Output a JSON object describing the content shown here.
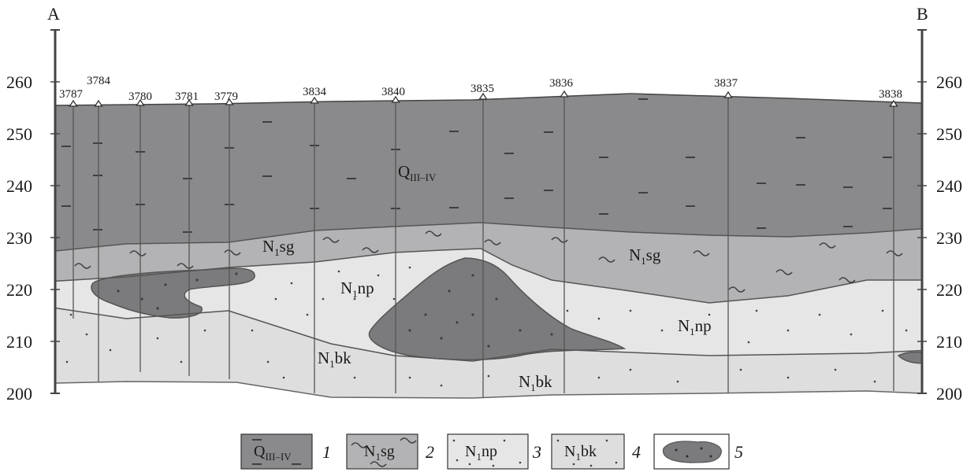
{
  "profile": {
    "start_label": "A",
    "end_label": "B",
    "elevation_ticks": [
      "260",
      "250",
      "240",
      "230",
      "220",
      "210",
      "200"
    ],
    "wells": [
      "3787",
      "3784",
      "3780",
      "3781",
      "3779",
      "3834",
      "3840",
      "3835",
      "3836",
      "3837",
      "3838"
    ]
  },
  "layers": {
    "q": {
      "main": "Q",
      "sub": "III–IV"
    },
    "sg": {
      "main": "N",
      "sub": "1",
      "tail": "sg"
    },
    "np": {
      "main": "N",
      "sub": "1",
      "tail": "np"
    },
    "bk": {
      "main": "N",
      "sub": "1",
      "tail": "bk"
    }
  },
  "legend": {
    "items": [
      {
        "number": "1",
        "text_main": "Q",
        "text_sub": "III–IV",
        "text_tail": ""
      },
      {
        "number": "2",
        "text_main": "N",
        "text_sub": "1",
        "text_tail": "sg"
      },
      {
        "number": "3",
        "text_main": "N",
        "text_sub": "1",
        "text_tail": "np"
      },
      {
        "number": "4",
        "text_main": "N",
        "text_sub": "1",
        "text_tail": "bk"
      },
      {
        "number": "5",
        "text_main": "",
        "text_sub": "",
        "text_tail": ""
      }
    ]
  },
  "colors": {
    "q_fill": "#8a8a8c",
    "sg_fill": "#b3b3b5",
    "np_fill": "#e6e6e6",
    "bk_fill": "#dedede",
    "lens_fill": "#7b7b7d",
    "line": "#555555",
    "axis": "#444444"
  }
}
